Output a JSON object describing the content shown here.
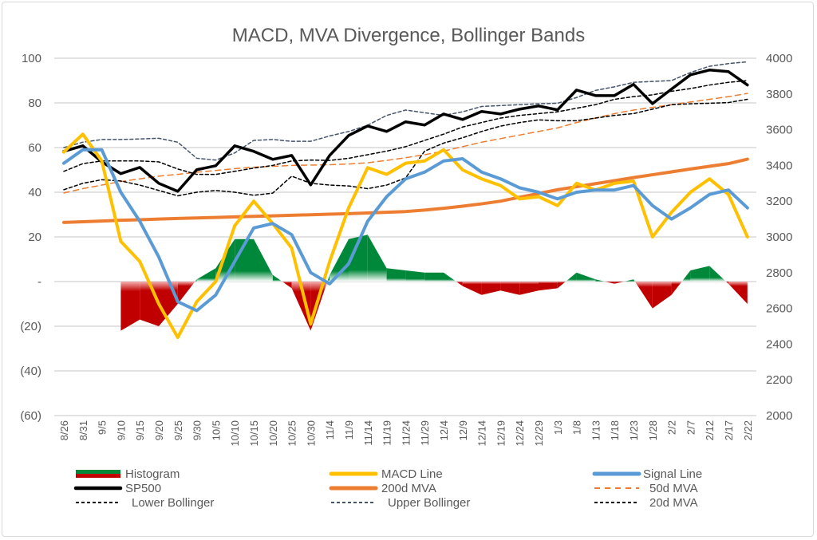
{
  "chart_data": {
    "type": "line",
    "title": "MACD, MVA Divergence, Bollinger Bands",
    "grid": true,
    "legend_position": "bottom",
    "x": [
      "8/26",
      "8/31",
      "9/5",
      "9/10",
      "9/15",
      "9/20",
      "9/25",
      "9/30",
      "10/5",
      "10/10",
      "10/15",
      "10/20",
      "10/25",
      "10/30",
      "11/4",
      "11/9",
      "11/14",
      "11/19",
      "11/24",
      "11/29",
      "12/4",
      "12/9",
      "12/14",
      "12/19",
      "12/24",
      "12/29",
      "1/3",
      "1/8",
      "1/13",
      "1/18",
      "1/23",
      "1/28",
      "2/2",
      "2/7",
      "2/12",
      "2/17",
      "2/22"
    ],
    "y_left": {
      "range": [
        -60,
        100
      ],
      "ticks": [
        100,
        80,
        60,
        40,
        20,
        0,
        -20,
        -40,
        -60
      ],
      "tick_labels": [
        "100",
        "80",
        "60",
        "40",
        "20",
        "-",
        "(20)",
        "(40)",
        "(60)"
      ]
    },
    "y_right": {
      "range": [
        2000,
        4000
      ],
      "ticks": [
        4000,
        3800,
        3600,
        3400,
        3200,
        3000,
        2800,
        2600,
        2400,
        2200,
        2000
      ],
      "tick_labels": [
        "4000",
        "3800",
        "3600",
        "3400",
        "3200",
        "3000",
        "2800",
        "2600",
        "2400",
        "2200",
        "2000"
      ]
    },
    "series": [
      {
        "name": "Histogram",
        "axis": "left",
        "kind": "area",
        "colors": {
          "positive": "#00883a",
          "negative": "#c00000"
        },
        "values": [
          null,
          null,
          null,
          -22,
          -17,
          -20,
          -10,
          1,
          6,
          19,
          19,
          3,
          -3,
          -22,
          3,
          19,
          21,
          6,
          5,
          4,
          4,
          -2,
          -6,
          -4,
          -6,
          -4,
          -3,
          4,
          1,
          -1,
          1,
          -12,
          -6,
          5,
          7,
          -1,
          -10
        ]
      },
      {
        "name": "MACD Line",
        "axis": "left",
        "color": "#ffc000",
        "width": 4,
        "values": [
          58,
          66,
          54,
          18,
          9,
          -10,
          -25,
          -9,
          0,
          25,
          36,
          26,
          15,
          -19,
          9,
          33,
          51,
          48,
          53,
          54,
          59,
          50,
          46,
          43,
          37,
          38,
          34,
          44,
          41,
          44,
          45,
          20,
          31,
          40,
          46,
          39,
          20
        ]
      },
      {
        "name": "Signal Line",
        "axis": "left",
        "color": "#5b9bd5",
        "width": 4,
        "values": [
          53,
          59,
          59,
          40,
          27,
          11,
          -9,
          -13,
          -6,
          9,
          24,
          26,
          21,
          4,
          -1,
          8,
          27,
          38,
          46,
          49,
          54,
          55,
          49,
          46,
          42,
          40,
          37,
          40,
          41,
          41,
          43,
          34,
          28,
          33,
          39,
          41,
          33
        ]
      },
      {
        "name": "SP500",
        "axis": "right",
        "color": "#000000",
        "width": 3.5,
        "values": [
          3479,
          3510,
          3420,
          3354,
          3389,
          3300,
          3255,
          3376,
          3398,
          3510,
          3479,
          3434,
          3456,
          3291,
          3456,
          3568,
          3621,
          3590,
          3644,
          3626,
          3688,
          3657,
          3702,
          3688,
          3715,
          3733,
          3711,
          3822,
          3791,
          3791,
          3854,
          3746,
          3827,
          3907,
          3934,
          3925,
          3850
        ]
      },
      {
        "name": "200d MVA",
        "axis": "right",
        "color": "#ed7d31",
        "width": 4,
        "values": [
          3081,
          3085,
          3089,
          3093,
          3096,
          3100,
          3103,
          3106,
          3109,
          3112,
          3115,
          3118,
          3121,
          3124,
          3127,
          3130,
          3134,
          3138,
          3142,
          3150,
          3160,
          3172,
          3185,
          3200,
          3222,
          3243,
          3264,
          3281,
          3298,
          3315,
          3332,
          3348,
          3364,
          3380,
          3395,
          3410,
          3435
        ]
      },
      {
        "name": "50d MVA",
        "axis": "right",
        "color": "#ed7d31",
        "dash": true,
        "width": 1.5,
        "values": [
          3246,
          3270,
          3290,
          3310,
          3325,
          3340,
          3350,
          3362,
          3372,
          3382,
          3390,
          3395,
          3400,
          3402,
          3404,
          3408,
          3415,
          3428,
          3443,
          3460,
          3480,
          3505,
          3530,
          3550,
          3570,
          3590,
          3610,
          3640,
          3665,
          3690,
          3710,
          3725,
          3740,
          3755,
          3770,
          3785,
          3803
        ]
      },
      {
        "name": "Lower Bollinger",
        "axis": "right",
        "color": "#000000",
        "dash": true,
        "width": 1.5,
        "values": [
          3264,
          3300,
          3320,
          3313,
          3290,
          3260,
          3230,
          3250,
          3260,
          3250,
          3233,
          3245,
          3340,
          3300,
          3290,
          3285,
          3270,
          3290,
          3330,
          3480,
          3525,
          3555,
          3590,
          3620,
          3640,
          3655,
          3650,
          3650,
          3665,
          3680,
          3690,
          3715,
          3740,
          3745,
          3748,
          3752,
          3770
        ]
      },
      {
        "name": "Upper Bollinger",
        "axis": "right",
        "color": "#44546a",
        "dash": true,
        "width": 1.5,
        "values": [
          3500,
          3530,
          3545,
          3545,
          3548,
          3552,
          3530,
          3440,
          3430,
          3470,
          3540,
          3545,
          3535,
          3535,
          3565,
          3590,
          3625,
          3680,
          3710,
          3695,
          3680,
          3700,
          3730,
          3735,
          3740,
          3745,
          3748,
          3780,
          3820,
          3840,
          3865,
          3870,
          3875,
          3920,
          3955,
          3970,
          3980
        ]
      },
      {
        "name": "20d MVA",
        "axis": "right",
        "color": "#000000",
        "dash": true,
        "width": 1.5,
        "values": [
          3367,
          3410,
          3425,
          3425,
          3425,
          3420,
          3380,
          3350,
          3350,
          3367,
          3385,
          3400,
          3425,
          3430,
          3428,
          3440,
          3460,
          3480,
          3505,
          3540,
          3575,
          3615,
          3640,
          3665,
          3680,
          3690,
          3700,
          3720,
          3740,
          3770,
          3785,
          3795,
          3815,
          3830,
          3850,
          3865,
          3875
        ]
      }
    ]
  }
}
